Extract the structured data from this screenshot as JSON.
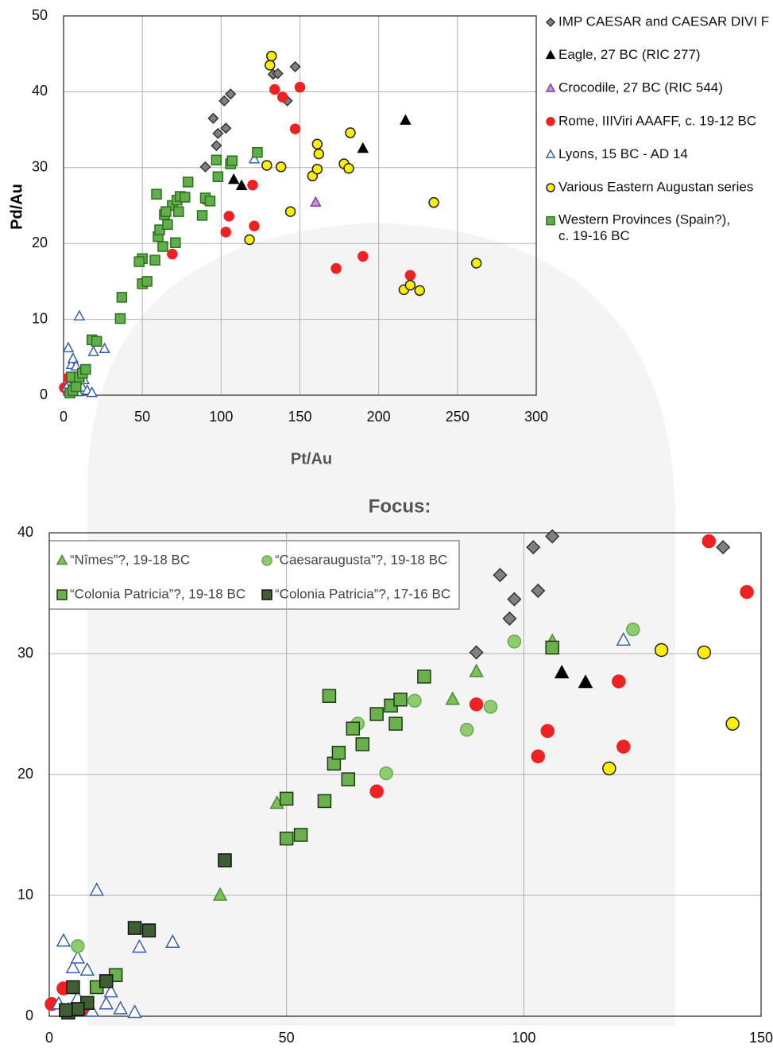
{
  "chart_data": [
    {
      "type": "scatter",
      "xlabel": "Pt/Au",
      "ylabel": "Pd/Au",
      "xlim": [
        0,
        300
      ],
      "ylim": [
        0,
        50
      ],
      "xticks": [
        0,
        50,
        100,
        150,
        200,
        250,
        300
      ],
      "yticks": [
        0,
        10,
        20,
        30,
        40,
        50
      ],
      "grid": true,
      "legend": "right",
      "series": [
        {
          "name": "IMP CAESAR and CAESAR DIVI F",
          "marker": "diamond",
          "color": "#808080",
          "edge": "#333333",
          "x": [
            90,
            97,
            98,
            95,
            103,
            102,
            106,
            133,
            136,
            142,
            147
          ],
          "y": [
            30.1,
            32.9,
            34.5,
            36.5,
            35.2,
            38.8,
            39.7,
            42.3,
            42.4,
            38.8,
            43.3
          ]
        },
        {
          "name": "Eagle, 27 BC (RIC 277)",
          "marker": "triangle",
          "color": "#000000",
          "edge": "#000000",
          "x": [
            108,
            113,
            190,
            217
          ],
          "y": [
            28.4,
            27.6,
            32.5,
            36.2
          ]
        },
        {
          "name": "Crocodile, 27 BC (RIC 544)",
          "marker": "triangle",
          "color": "#c890d8",
          "edge": "#8a3c9a",
          "x": [
            160
          ],
          "y": [
            25.4
          ]
        },
        {
          "name": "Rome, IIIViri AAAFF, c. 19-12 BC",
          "marker": "circle",
          "color": "#ee2222",
          "edge": "#ee2222",
          "x": [
            0.5,
            3,
            8,
            69,
            90,
            103,
            105,
            120,
            121,
            134,
            139,
            147,
            150,
            173,
            190,
            220
          ],
          "y": [
            1,
            2.3,
            0.6,
            18.6,
            25.8,
            21.5,
            23.6,
            27.7,
            22.3,
            40.3,
            39.3,
            35.1,
            40.6,
            16.7,
            18.3,
            15.8
          ]
        },
        {
          "name": "Lyons, 15 BC - AD 14",
          "marker": "triangle",
          "color": "#ffffff",
          "edge": "#3a5fb0",
          "x": [
            3,
            5,
            6,
            8,
            10,
            19,
            26,
            2,
            4,
            6,
            9,
            12,
            13,
            15,
            18,
            121
          ],
          "y": [
            6.2,
            4,
            4.8,
            3.8,
            10.4,
            5.7,
            6.1,
            1,
            0.5,
            1.5,
            0.4,
            1,
            2,
            0.6,
            0.3,
            31.1
          ]
        },
        {
          "name": "Various Eastern Augustan series",
          "marker": "circle",
          "color": "#ffee00",
          "edge": "#222222",
          "x": [
            118,
            129,
            138,
            144,
            131,
            132,
            158,
            161,
            161,
            162,
            178,
            181,
            182,
            235,
            216,
            220,
            226,
            262
          ],
          "y": [
            20.5,
            30.3,
            30.1,
            24.2,
            43.5,
            44.7,
            28.9,
            33.1,
            29.8,
            31.8,
            30.5,
            29.9,
            34.6,
            25.4,
            13.9,
            14.5,
            13.8,
            17.4
          ]
        },
        {
          "name": "Western Provinces (Spain?),\nc. 19-16 BC",
          "marker": "square",
          "color": "#5fb04a",
          "edge": "#2e6e20",
          "x": [
            4,
            5,
            6,
            8,
            10,
            12,
            14,
            18,
            21,
            37,
            36,
            50,
            50,
            53,
            58,
            60,
            59,
            61,
            63,
            64,
            66,
            69,
            72,
            73,
            74,
            79,
            88,
            90,
            97,
            106,
            107,
            123,
            48,
            65,
            71,
            77,
            93,
            98
          ],
          "y": [
            0.3,
            2.4,
            0.6,
            1.1,
            2.4,
            2.9,
            3.4,
            7.3,
            7.1,
            12.9,
            10.1,
            18,
            14.7,
            15,
            17.8,
            20.9,
            26.5,
            21.8,
            19.6,
            23.8,
            22.5,
            25,
            25.7,
            24.2,
            26.2,
            28.1,
            23.7,
            26,
            31,
            30.5,
            30.9,
            32,
            17.6,
            24.2,
            20.1,
            26.1,
            25.6,
            28.8
          ]
        }
      ]
    },
    {
      "type": "scatter",
      "title": "Focus:",
      "xlim": [
        0,
        150
      ],
      "ylim": [
        0,
        40
      ],
      "xticks": [
        0,
        50,
        100,
        150
      ],
      "yticks": [
        0,
        10,
        20,
        30,
        40
      ],
      "grid": true,
      "legend": "upper left",
      "series": [
        {
          "name": "“Nîmes”?, 19-18 BC",
          "marker": "triangle",
          "color": "#7dbf5a",
          "edge": "#4e8a34",
          "x": [
            48,
            36,
            85,
            90,
            106
          ],
          "y": [
            17.6,
            10,
            26.2,
            28.5,
            31
          ]
        },
        {
          "name": "“Caesaraugusta”?, 19-18 BC",
          "marker": "circle",
          "color": "#8fcc70",
          "edge": "#6aa84f",
          "x": [
            6,
            65,
            71,
            77,
            88,
            93,
            98,
            123
          ],
          "y": [
            5.8,
            24.2,
            20.1,
            26.1,
            23.7,
            25.6,
            31,
            32
          ]
        },
        {
          "name": "“Colonia Patricia”?, 19-18 BC",
          "marker": "square",
          "color": "#6ab04c",
          "edge": "#1e3a14",
          "x": [
            50,
            50,
            53,
            58,
            59,
            60,
            61,
            63,
            64,
            66,
            69,
            72,
            73,
            74,
            79,
            106,
            10,
            14
          ],
          "y": [
            18,
            14.7,
            15,
            17.8,
            26.5,
            20.9,
            21.8,
            19.6,
            23.8,
            22.5,
            25,
            25.7,
            24.2,
            26.2,
            28.1,
            30.5,
            2.4,
            3.4
          ]
        },
        {
          "name": "“Colonia Patricia”?, 17-16 BC",
          "marker": "square",
          "color": "#3e5e34",
          "edge": "#111111",
          "x": [
            37,
            18,
            21,
            5,
            12,
            8,
            4,
            6,
            3.5
          ],
          "y": [
            12.9,
            7.3,
            7.1,
            2.4,
            2.9,
            1.1,
            0.3,
            0.6,
            0.5
          ]
        }
      ]
    }
  ]
}
